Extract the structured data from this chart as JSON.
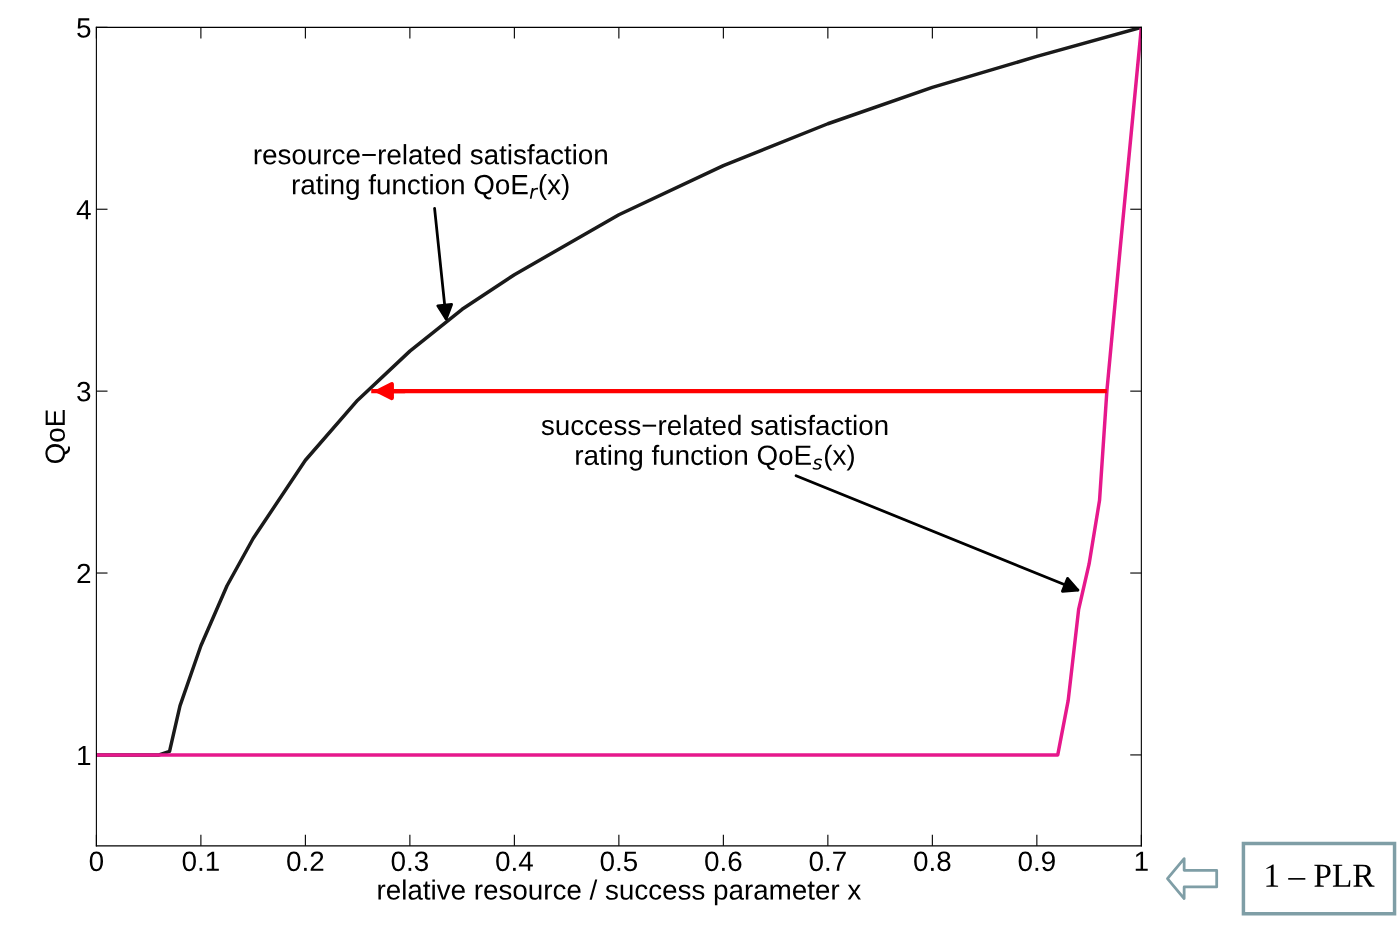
{
  "chart_data": {
    "type": "line",
    "xlabel": "relative resource / success parameter x",
    "ylabel": "QoE",
    "xlim": [
      0,
      1
    ],
    "ylim": [
      0.5,
      5
    ],
    "xticks": [
      0,
      0.1,
      0.2,
      0.3,
      0.4,
      0.5,
      0.6,
      0.7,
      0.8,
      0.9,
      1
    ],
    "yticks": [
      1,
      2,
      3,
      4,
      5
    ],
    "grid": false,
    "legend": false,
    "marker": "none",
    "line_style": "solid",
    "series": [
      {
        "color": "#1a1a1a",
        "x": [
          0,
          0.06,
          0.07,
          0.08,
          0.1,
          0.125,
          0.15,
          0.2,
          0.25,
          0.3,
          0.35,
          0.4,
          0.5,
          0.6,
          0.7,
          0.8,
          0.9,
          1.0
        ],
        "values": [
          1,
          1,
          1.02,
          1.27,
          1.6,
          1.93,
          2.19,
          2.62,
          2.95,
          3.22,
          3.45,
          3.64,
          3.97,
          4.24,
          4.47,
          4.67,
          4.84,
          5.0
        ]
      },
      {
        "color": "#e6188c",
        "x": [
          0,
          0.5,
          0.92,
          0.93,
          0.94,
          0.95,
          0.96,
          0.967,
          0.98,
          0.99,
          1.0
        ],
        "values": [
          1,
          1,
          1,
          1.3,
          1.8,
          2.05,
          2.4,
          3.0,
          3.8,
          4.4,
          5.0
        ]
      },
      {
        "color": "#ff0000",
        "x": [
          0.965,
          0.265
        ],
        "values": [
          3,
          3
        ]
      }
    ],
    "annotations": [
      {
        "text": "resource−related satisfaction\nrating function QoE$_{r}$(x)",
        "x": 0.335,
        "y": 3.38
      },
      {
        "text": "success−related satisfaction\nrating function QoE$_{s}$(x)",
        "x": 0.942,
        "y": 1.9
      },
      "1 – PLR"
    ]
  }
}
